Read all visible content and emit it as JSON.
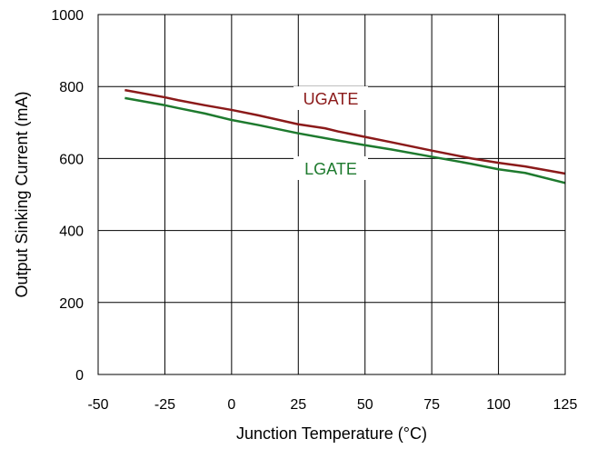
{
  "chart_data": {
    "type": "line",
    "title": "",
    "xlabel": "Junction Temperature (°C)",
    "ylabel": "Output Sinking Current (mA)",
    "xlim": [
      -50,
      125
    ],
    "ylim": [
      0,
      1000
    ],
    "x_ticks": [
      -50,
      -25,
      0,
      25,
      50,
      75,
      100,
      125
    ],
    "y_ticks": [
      0,
      200,
      400,
      600,
      800,
      1000
    ],
    "x_tick_labels": [
      "-50",
      "-25",
      "0",
      "25",
      "50",
      "75",
      "100",
      "125"
    ],
    "y_tick_labels": [
      "0",
      "200",
      "400",
      "600",
      "800",
      "1000"
    ],
    "grid": true,
    "legend": "inline labels",
    "series": [
      {
        "name": "UGATE",
        "color": "#8b1a1a",
        "x": [
          -40,
          -25,
          -20,
          -10,
          0,
          10,
          25,
          35,
          40,
          50,
          60,
          75,
          90,
          100,
          110,
          125
        ],
        "y": [
          790,
          770,
          762,
          748,
          735,
          720,
          695,
          684,
          675,
          660,
          645,
          622,
          600,
          588,
          578,
          558
        ]
      },
      {
        "name": "LGATE",
        "color": "#1e7a2e",
        "x": [
          -40,
          -25,
          -20,
          -10,
          0,
          10,
          25,
          40,
          50,
          60,
          75,
          90,
          100,
          110,
          125
        ],
        "y": [
          768,
          748,
          740,
          725,
          707,
          693,
          670,
          650,
          637,
          625,
          605,
          585,
          570,
          560,
          532
        ]
      }
    ]
  }
}
